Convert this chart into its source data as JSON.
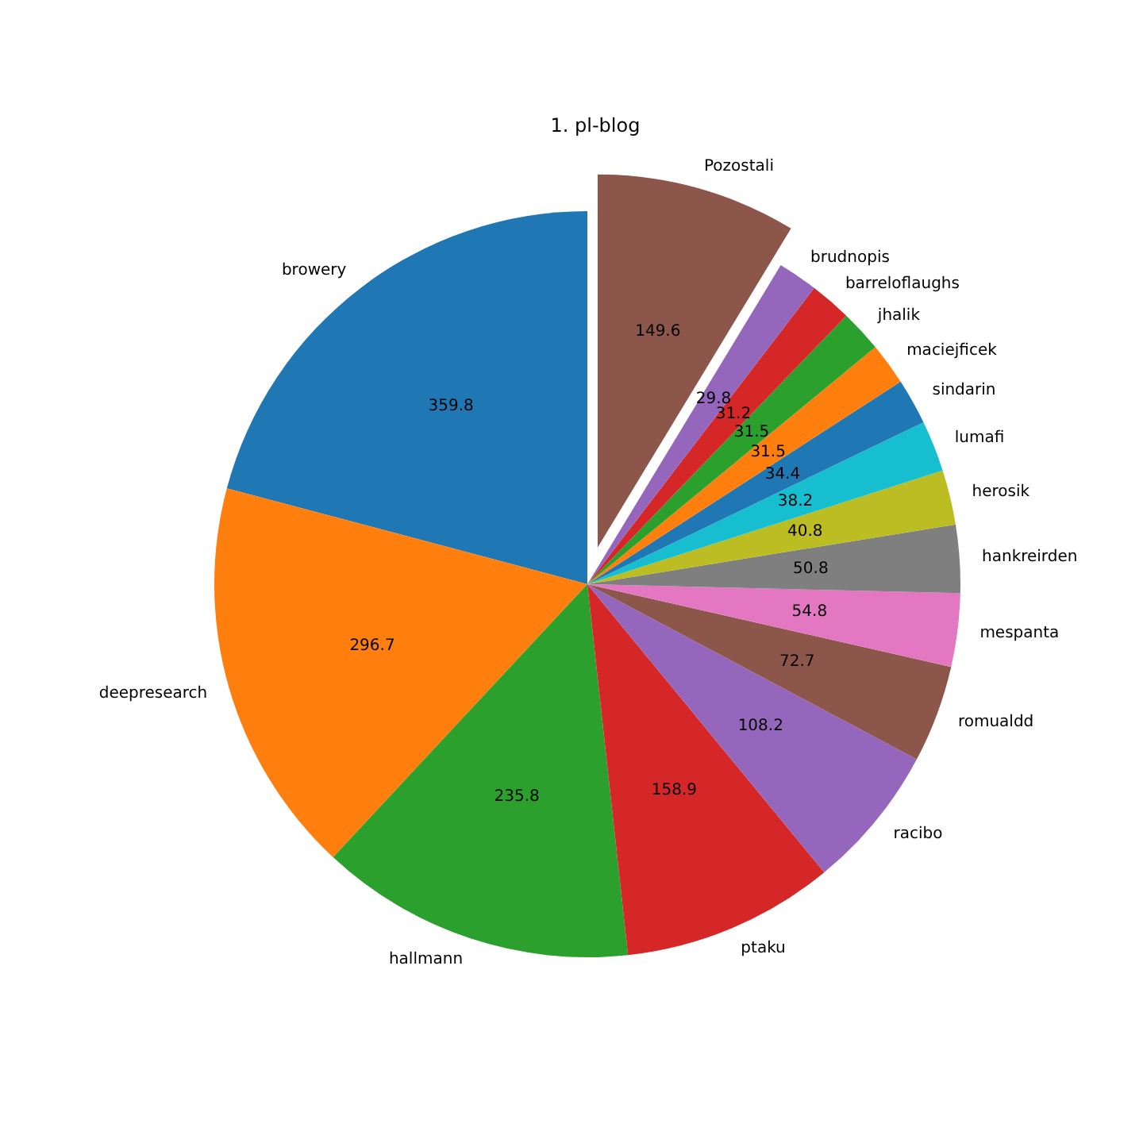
{
  "chart_data": {
    "type": "pie",
    "title": "1. pl-blog",
    "categories": [
      "browery",
      "deepresearch",
      "hallmann",
      "ptaku",
      "racibo",
      "romualdd",
      "mespanta",
      "hankreirden",
      "herosik",
      "lumafi",
      "sindarin",
      "maciejficek",
      "jhalik",
      "barreloflaughs",
      "brudnopis",
      "Pozostali"
    ],
    "values": [
      359.8,
      296.7,
      235.8,
      158.9,
      108.2,
      72.7,
      54.8,
      50.8,
      40.8,
      38.2,
      34.4,
      31.5,
      31.5,
      31.2,
      29.8,
      149.6
    ],
    "colors": [
      "#1f77b4",
      "#ff7f0e",
      "#2ca02c",
      "#d62728",
      "#9467bd",
      "#8c564b",
      "#e377c2",
      "#7f7f7f",
      "#bcbd22",
      "#17becf",
      "#1f77b4",
      "#ff7f0e",
      "#2ca02c",
      "#d62728",
      "#9467bd",
      "#8c564b"
    ],
    "data_labels": true,
    "legend": false
  }
}
